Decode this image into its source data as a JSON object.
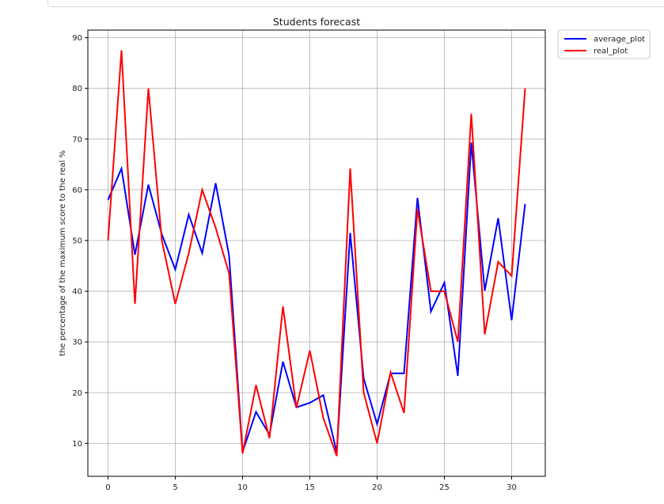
{
  "chart_data": {
    "type": "line",
    "title": "Students forecast",
    "xlabel": "",
    "ylabel": "the percentage of the maximum score to the real %",
    "xlim": [
      -1.5,
      32.5
    ],
    "ylim": [
      3.5,
      91.5
    ],
    "xticks": [
      0,
      5,
      10,
      15,
      20,
      25,
      30
    ],
    "yticks": [
      10,
      20,
      30,
      40,
      50,
      60,
      70,
      80,
      90
    ],
    "grid": true,
    "legend_position": "outside-top-right",
    "x": [
      0,
      1,
      2,
      3,
      4,
      5,
      6,
      7,
      8,
      9,
      10,
      11,
      12,
      13,
      14,
      15,
      16,
      17,
      18,
      19,
      20,
      21,
      22,
      23,
      24,
      25,
      26,
      27,
      28,
      29,
      30,
      31
    ],
    "series": [
      {
        "name": "average_plot",
        "color": "#0000ff",
        "values": [
          58,
          64.2,
          47.2,
          61,
          51.2,
          44.3,
          55.1,
          47.5,
          61.3,
          47,
          8.3,
          16.2,
          11.7,
          26.1,
          17.1,
          18,
          19.5,
          8.2,
          51.5,
          22.8,
          13.8,
          23.8,
          23.8,
          58.4,
          36,
          41.7,
          23.3,
          69.3,
          40.1,
          54.4,
          34.3,
          57.2
        ]
      },
      {
        "name": "real_plot",
        "color": "#ff0000",
        "values": [
          50,
          87.5,
          37.5,
          80,
          50,
          37.5,
          47.5,
          60,
          52.5,
          43.5,
          8,
          21.5,
          11,
          37,
          17,
          28.3,
          15,
          7.5,
          64.2,
          20,
          10,
          24,
          16,
          56.2,
          40,
          40,
          30,
          75,
          31.5,
          45.8,
          43,
          80
        ]
      }
    ]
  }
}
